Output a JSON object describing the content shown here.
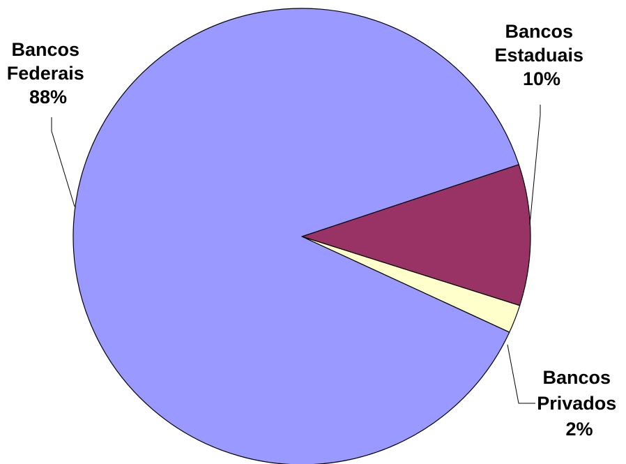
{
  "chart_data": {
    "type": "pie",
    "title": "",
    "series": [
      {
        "values": [
          88,
          10,
          2
        ]
      }
    ],
    "categories": [
      "Bancos Federais",
      "Bancos Estaduais",
      "Bancos Privados"
    ],
    "slices": [
      {
        "key": "federais",
        "name_lines": [
          "Bancos",
          "Federais"
        ],
        "value": 88,
        "value_label": "88%",
        "color": "#9999FF"
      },
      {
        "key": "estaduais",
        "name_lines": [
          "Bancos",
          "Estaduais"
        ],
        "value": 10,
        "value_label": "10%",
        "color": "#993366"
      },
      {
        "key": "privados",
        "name_lines": [
          "Bancos",
          "Privados"
        ],
        "value": 2,
        "value_label": "2%",
        "color": "#FFFFCC"
      }
    ],
    "legend": "none"
  }
}
